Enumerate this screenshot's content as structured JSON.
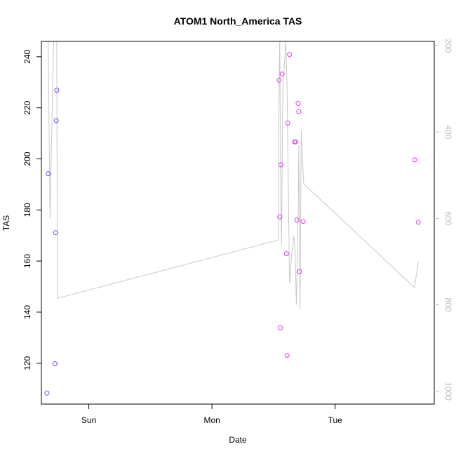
{
  "chart_data": {
    "type": "scatter",
    "title": "ATOM1 North_America TAS",
    "xlabel": "Date",
    "ylabel": "TAS",
    "x_ticks": [
      {
        "label": "Sun",
        "t": 1.0
      },
      {
        "label": "Mon",
        "t": 2.0
      },
      {
        "label": "Tue",
        "t": 3.0
      }
    ],
    "xlim": [
      0.615,
      3.805
    ],
    "ylim": [
      104,
      246
    ],
    "y_ticks": [
      120,
      140,
      160,
      180,
      200,
      220,
      240
    ],
    "y2_ticks": [
      200,
      400,
      600,
      800,
      1000
    ],
    "y2lim": [
      1030,
      190
    ],
    "y2_reversed": true,
    "grid": false,
    "colors": {
      "point_early": "#7b3ff2",
      "point_late": "#e33cf0",
      "line": "#c8c8c8",
      "axis": "#000000",
      "axis_right": "#bdbdbd"
    },
    "points": [
      {
        "x": 0.66,
        "y": 108.3
      },
      {
        "x": 0.67,
        "y": 194.2
      },
      {
        "x": 0.725,
        "y": 119.8
      },
      {
        "x": 0.73,
        "y": 171.1
      },
      {
        "x": 0.735,
        "y": 215.0
      },
      {
        "x": 0.74,
        "y": 226.9
      },
      {
        "x": 2.545,
        "y": 230.8
      },
      {
        "x": 2.55,
        "y": 177.3
      },
      {
        "x": 2.555,
        "y": 133.9
      },
      {
        "x": 2.56,
        "y": 197.7
      },
      {
        "x": 2.57,
        "y": 233.2
      },
      {
        "x": 2.605,
        "y": 162.9
      },
      {
        "x": 2.61,
        "y": 123.1
      },
      {
        "x": 2.615,
        "y": 214.0
      },
      {
        "x": 2.63,
        "y": 240.9
      },
      {
        "x": 2.67,
        "y": 206.7
      },
      {
        "x": 2.68,
        "y": 206.6
      },
      {
        "x": 2.69,
        "y": 176.1
      },
      {
        "x": 2.7,
        "y": 221.7
      },
      {
        "x": 2.705,
        "y": 218.5
      },
      {
        "x": 2.71,
        "y": 155.9
      },
      {
        "x": 2.74,
        "y": 175.5
      },
      {
        "x": 3.645,
        "y": 199.6
      },
      {
        "x": 3.675,
        "y": 175.2
      }
    ],
    "series": [
      {
        "axis": "right",
        "values": [
          {
            "x": 0.67,
            "y": 190
          },
          {
            "x": 0.685,
            "y": 600
          },
          {
            "x": 0.71,
            "y": 240
          },
          {
            "x": 0.715,
            "y": 190
          },
          {
            "x": 0.74,
            "y": 190
          },
          {
            "x": 0.745,
            "y": 785
          },
          {
            "x": 2.54,
            "y": 650
          },
          {
            "x": 2.545,
            "y": 300
          },
          {
            "x": 2.55,
            "y": 190
          },
          {
            "x": 2.56,
            "y": 570
          },
          {
            "x": 2.565,
            "y": 660
          },
          {
            "x": 2.575,
            "y": 300
          },
          {
            "x": 2.6,
            "y": 190
          },
          {
            "x": 2.61,
            "y": 300
          },
          {
            "x": 2.63,
            "y": 750
          },
          {
            "x": 2.645,
            "y": 690
          },
          {
            "x": 2.665,
            "y": 640
          },
          {
            "x": 2.675,
            "y": 670
          },
          {
            "x": 2.685,
            "y": 800
          },
          {
            "x": 2.7,
            "y": 590
          },
          {
            "x": 2.705,
            "y": 430
          },
          {
            "x": 2.715,
            "y": 810
          },
          {
            "x": 2.725,
            "y": 395
          },
          {
            "x": 2.745,
            "y": 520
          },
          {
            "x": 3.645,
            "y": 760
          },
          {
            "x": 3.675,
            "y": 700
          }
        ]
      }
    ]
  }
}
